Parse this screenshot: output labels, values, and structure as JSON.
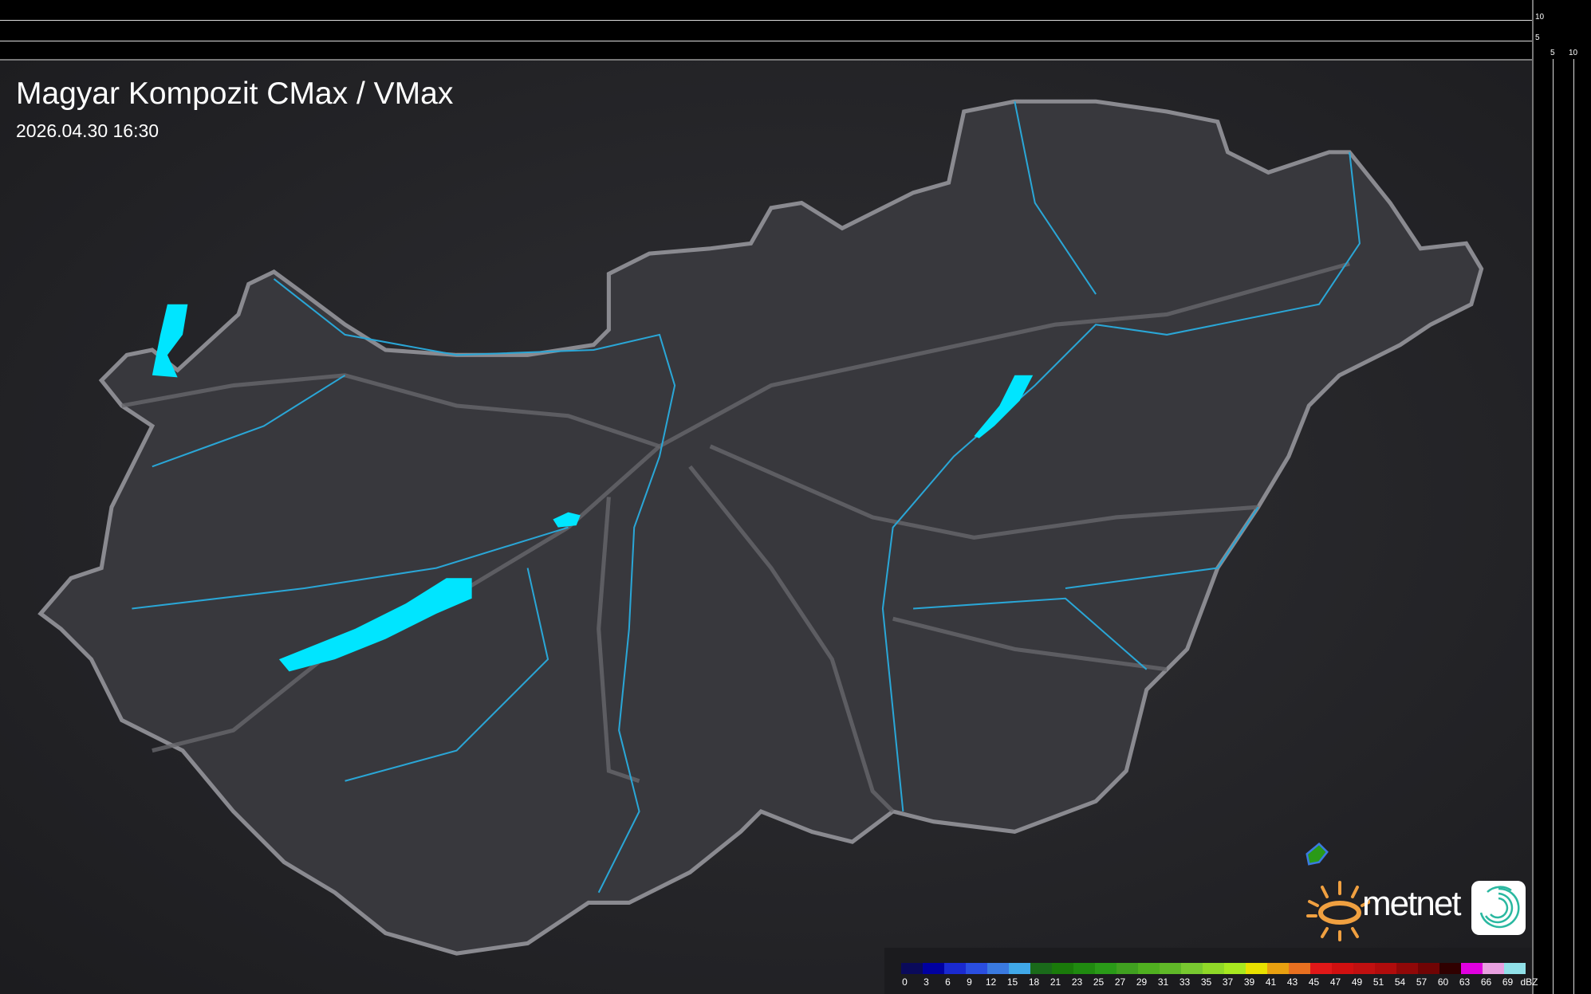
{
  "title": "Magyar Kompozit CMax / VMax",
  "timestamp": "2026.04.30 16:30",
  "top_profile_axis": [
    "10",
    "5"
  ],
  "right_profile_axis": [
    "5",
    "10"
  ],
  "brand": "metnet",
  "colors": {
    "background": "#2a2a2e",
    "country": "#37373c",
    "border": "#8a8a90",
    "lake": "#00e5ff",
    "river": "#2aa6d6",
    "road": "#6a6a70"
  },
  "legend": {
    "unit": "dBZ",
    "labels": [
      "0",
      "3",
      "6",
      "9",
      "12",
      "15",
      "18",
      "21",
      "23",
      "25",
      "27",
      "29",
      "31",
      "33",
      "35",
      "37",
      "39",
      "41",
      "43",
      "45",
      "47",
      "49",
      "51",
      "54",
      "57",
      "60",
      "63",
      "66",
      "69"
    ],
    "colors": [
      "#0a0a5a",
      "#0000a0",
      "#1a2ad0",
      "#2a4ee0",
      "#3a7ae0",
      "#40a8e8",
      "#1a6a1a",
      "#1a7a0a",
      "#208a10",
      "#2a9a18",
      "#40a020",
      "#50b020",
      "#60b828",
      "#78c830",
      "#90d828",
      "#a8e820",
      "#e8e000",
      "#e8a010",
      "#e87020",
      "#e01818",
      "#d01010",
      "#c01010",
      "#b00c0c",
      "#900808",
      "#700404",
      "#300000",
      "#e000e0",
      "#e8a0e0",
      "#90e0e8"
    ]
  }
}
